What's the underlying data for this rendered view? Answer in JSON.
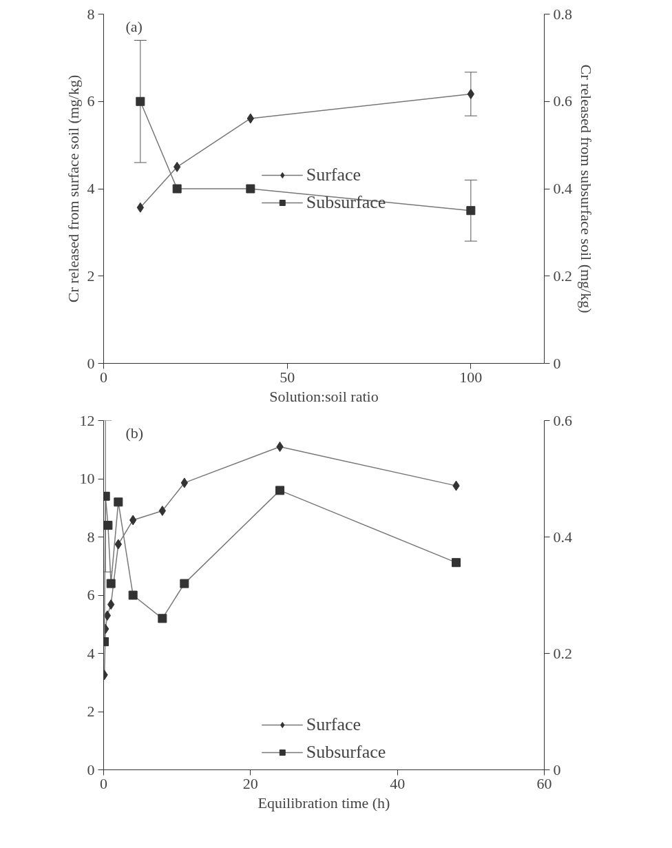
{
  "chart_data": [
    {
      "type": "line",
      "xlabel": "Solution:soil ratio",
      "ylabel": "Cr released from surface soil (mg/kg)",
      "y2label": "Cr released from subsurface soil (mg/kg)",
      "annotations": [
        "(a)"
      ],
      "xlim": [
        0,
        120
      ],
      "xticks": [
        0,
        50,
        100
      ],
      "ylim": [
        0,
        8
      ],
      "yticks": [
        0,
        2,
        4,
        6,
        8
      ],
      "y2lim": [
        0,
        0.8
      ],
      "y2ticks": [
        0,
        0.2,
        0.4,
        0.6,
        0.8
      ],
      "grid": false,
      "legend": "center",
      "series": [
        {
          "name": "Surface",
          "color": "#333333",
          "marker": "diamond",
          "x": [
            10,
            20,
            40,
            100
          ],
          "values": [
            3.57,
            4.5,
            5.61,
            6.17
          ],
          "errors": [
            null,
            null,
            null,
            0.5
          ]
        },
        {
          "name": "Subsurface",
          "color": "#333333",
          "marker": "square",
          "axis": "y2",
          "x": [
            10,
            20,
            40,
            100
          ],
          "values": [
            0.6,
            0.4,
            0.4,
            0.35
          ],
          "errors": [
            0.14,
            null,
            null,
            0.07
          ]
        }
      ]
    },
    {
      "type": "line",
      "xlabel": "Equilibration time (h)",
      "annotations": [
        "(b)"
      ],
      "xlim": [
        0,
        60
      ],
      "xticks": [
        0,
        20,
        40,
        60
      ],
      "ylim": [
        0,
        12
      ],
      "yticks": [
        0,
        2,
        4,
        6,
        8,
        10,
        12
      ],
      "y2lim": [
        0,
        0.6
      ],
      "y2ticks": [
        0,
        0.2,
        0.4,
        0.6
      ],
      "grid": false,
      "legend": "bottom",
      "series": [
        {
          "name": "Surface",
          "color": "#333333",
          "marker": "diamond",
          "x": [
            0.1,
            0.25,
            0.5,
            1,
            2,
            4,
            8,
            11,
            24,
            48
          ],
          "values": [
            3.26,
            4.84,
            5.3,
            5.68,
            7.75,
            8.58,
            8.9,
            9.86,
            11.1,
            9.76
          ]
        },
        {
          "name": "Subsurface",
          "color": "#333333",
          "marker": "square",
          "axis": "y2",
          "x": [
            0.1,
            0.25,
            0.6,
            1,
            2,
            4,
            8,
            11,
            24,
            48
          ],
          "values": [
            0.22,
            0.47,
            0.42,
            0.32,
            0.46,
            0.3,
            0.26,
            0.32,
            0.48,
            0.356
          ],
          "errors": [
            null,
            0.13,
            null,
            null,
            null,
            null,
            null,
            null,
            null,
            null
          ]
        }
      ]
    }
  ]
}
